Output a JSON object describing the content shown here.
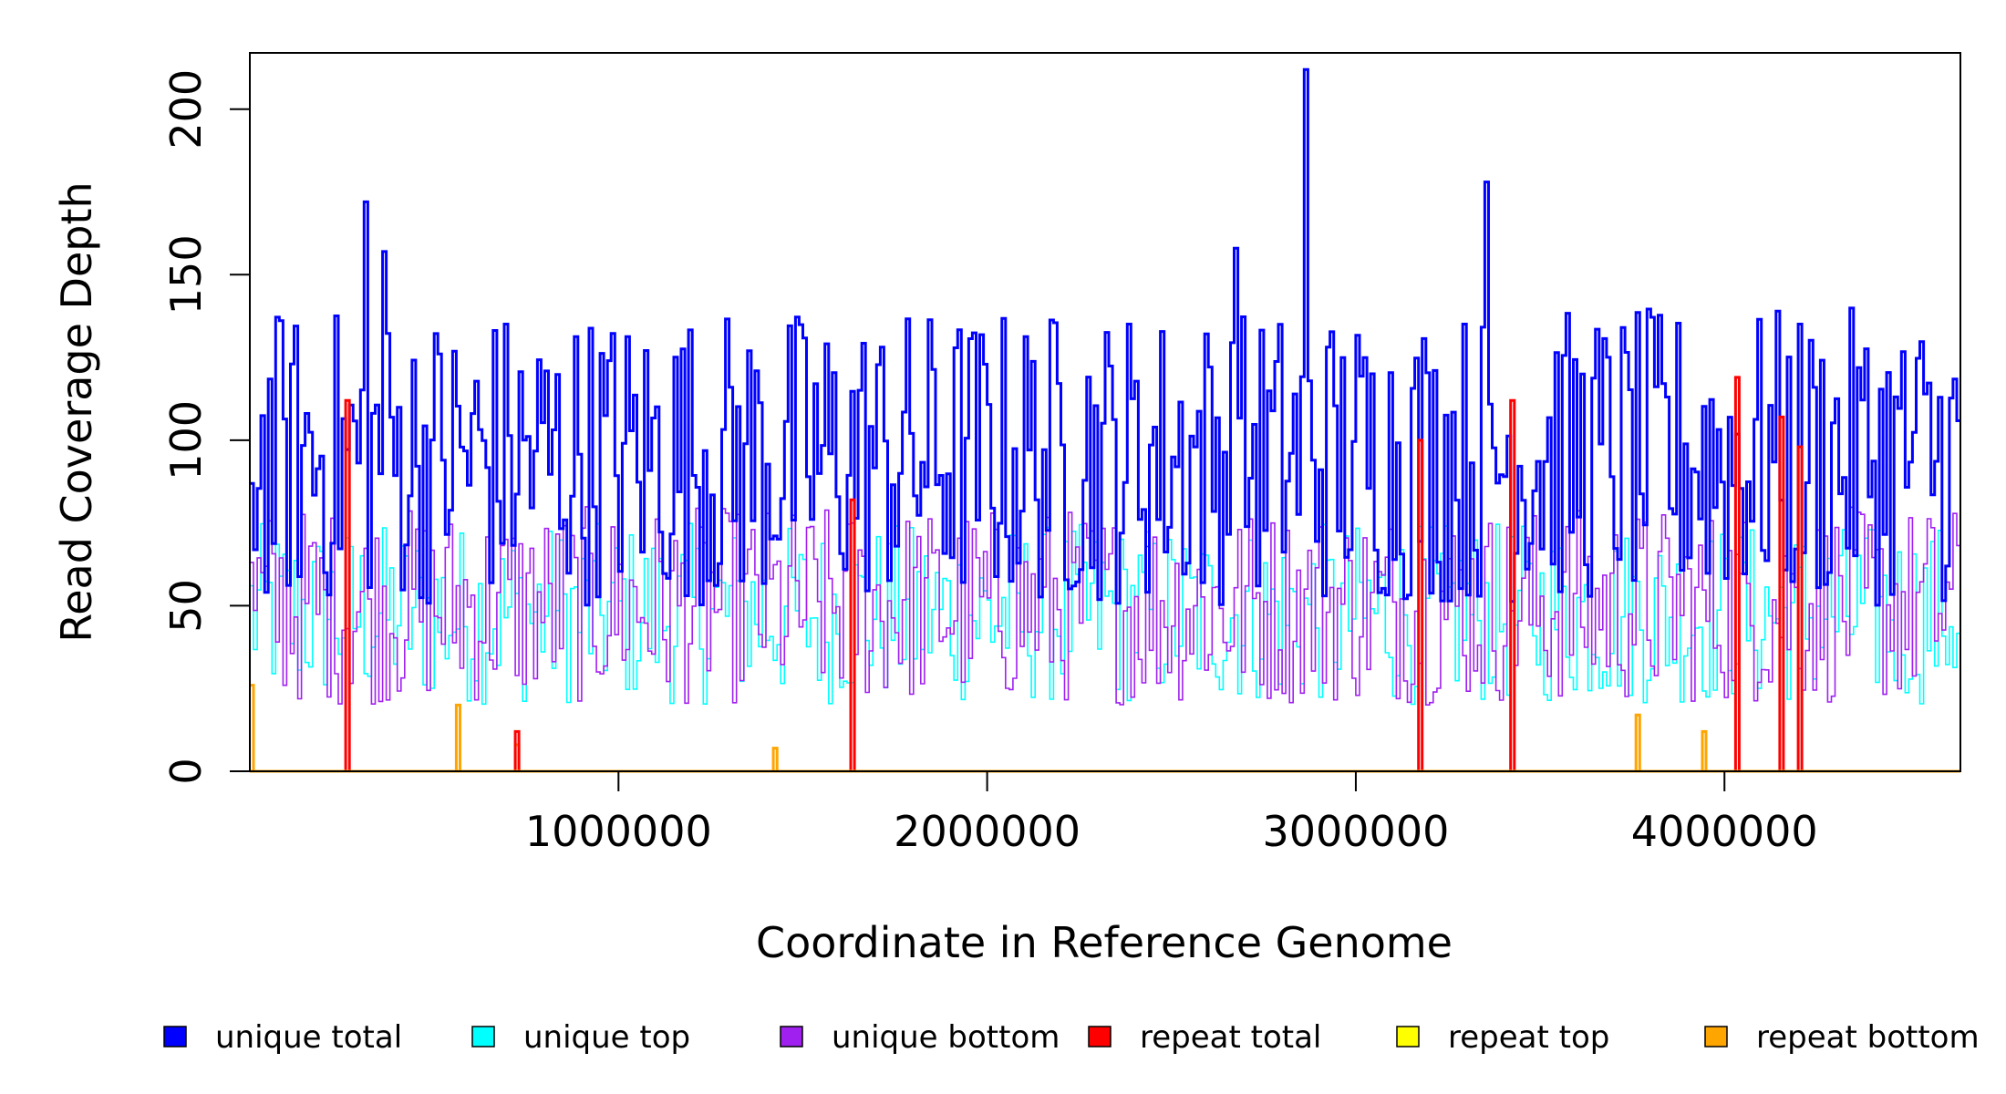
{
  "chart_data": {
    "type": "line",
    "title": "",
    "xlabel": "Coordinate in Reference Genome",
    "ylabel": "Read Coverage Depth",
    "xlim": [
      1,
      4640000
    ],
    "ylim": [
      0,
      217
    ],
    "x_ticks": [
      1000000,
      2000000,
      3000000,
      4000000
    ],
    "x_tick_labels": [
      "1000000",
      "2000000",
      "3000000",
      "4000000"
    ],
    "y_ticks": [
      0,
      50,
      100,
      150,
      200
    ],
    "y_tick_labels": [
      "0",
      "50",
      "100",
      "150",
      "200"
    ],
    "grid": false,
    "legend_position": "bottom",
    "bin_size": 10000,
    "series": [
      {
        "name": "unique total",
        "color": "#0000FF",
        "typical_range": [
          50,
          140
        ],
        "peaks": [
          {
            "x": 320000,
            "y": 172
          },
          {
            "x": 370000,
            "y": 157
          },
          {
            "x": 2870000,
            "y": 212
          },
          {
            "x": 3360000,
            "y": 178
          },
          {
            "x": 2680000,
            "y": 158
          }
        ]
      },
      {
        "name": "unique top",
        "color": "#00FFFF",
        "typical_range": [
          20,
          75
        ]
      },
      {
        "name": "unique bottom",
        "color": "#A020F0",
        "typical_range": [
          20,
          80
        ]
      },
      {
        "name": "repeat total",
        "color": "#FF0000",
        "typical_range": [
          0,
          0
        ],
        "peaks": [
          {
            "x": 270000,
            "y": 112
          },
          {
            "x": 730000,
            "y": 12
          },
          {
            "x": 1640000,
            "y": 82
          },
          {
            "x": 3180000,
            "y": 100
          },
          {
            "x": 3430000,
            "y": 112
          },
          {
            "x": 4040000,
            "y": 119
          },
          {
            "x": 4160000,
            "y": 107
          },
          {
            "x": 4210000,
            "y": 98
          }
        ]
      },
      {
        "name": "repeat top",
        "color": "#FFFF00",
        "typical_range": [
          0,
          0
        ]
      },
      {
        "name": "repeat bottom",
        "color": "#FFA500",
        "typical_range": [
          0,
          0
        ],
        "peaks": [
          {
            "x": 10000,
            "y": 26
          },
          {
            "x": 570000,
            "y": 20
          },
          {
            "x": 730000,
            "y": 8
          },
          {
            "x": 1430000,
            "y": 7
          },
          {
            "x": 3770000,
            "y": 17
          },
          {
            "x": 3950000,
            "y": 12
          }
        ]
      }
    ],
    "legend": [
      {
        "label": "unique total",
        "color": "#0000FF"
      },
      {
        "label": "unique top",
        "color": "#00FFFF"
      },
      {
        "label": "unique bottom",
        "color": "#A020F0"
      },
      {
        "label": "repeat total",
        "color": "#FF0000"
      },
      {
        "label": "repeat top",
        "color": "#FFFF00"
      },
      {
        "label": "repeat bottom",
        "color": "#FFA500"
      }
    ]
  }
}
